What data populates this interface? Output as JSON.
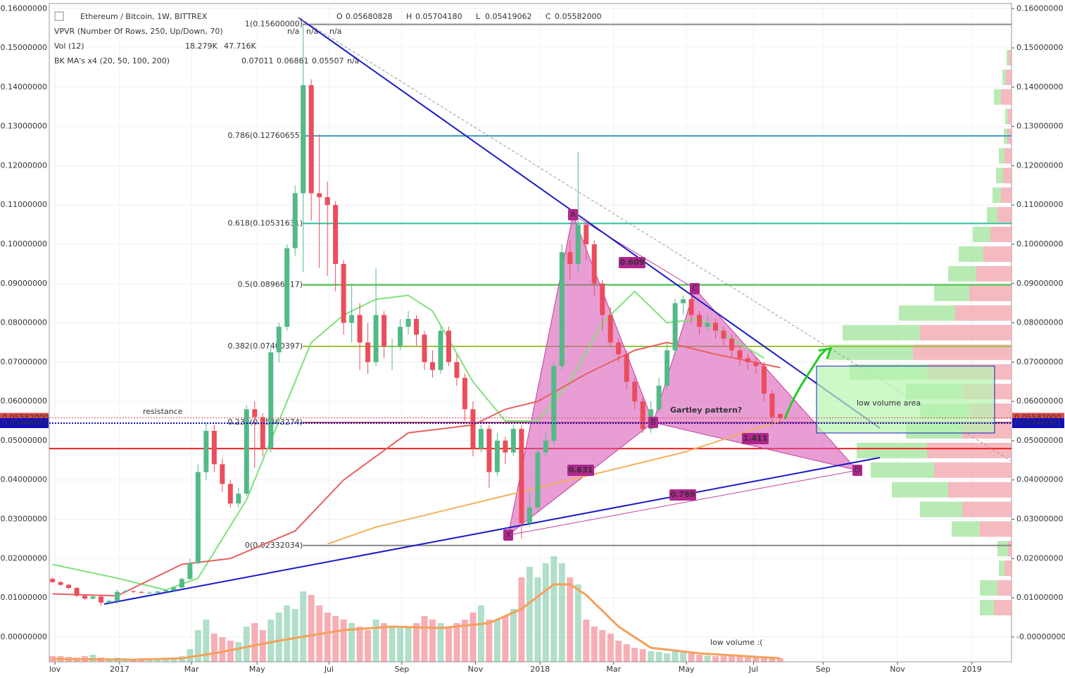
{
  "chart_data": {
    "type": "candlestick",
    "title": "Ethereum / Bitcoin, 1W, BITTREX",
    "ohlc_header": {
      "labels": [
        "O",
        "H",
        "L",
        "C"
      ],
      "values": [
        "0.05680828",
        "0.05704180",
        "0.05419062",
        "0.05582000"
      ],
      "color": "#e04a4a"
    },
    "indicators": [
      {
        "name": "VPVR (Number Of Rows, 250, Up/Down, 70)",
        "values": [
          "n/a",
          "n/a",
          "n/a"
        ],
        "colors": [
          "#2ecc40",
          "#e04a4a",
          "#333333"
        ]
      },
      {
        "name": "Vol (12)",
        "values": [
          "18.279K",
          "47.716K"
        ],
        "colors": [
          "#e04a4a",
          "#f0a040"
        ]
      },
      {
        "name": "BK MA's x4 (20, 50, 100, 200)",
        "values": [
          "0.07011",
          "0.06861",
          "0.05507",
          "n/a"
        ],
        "colors": [
          "#2ecc40",
          "#cc2020",
          "#f0a040",
          "#8e24aa"
        ]
      }
    ],
    "up_color": "#53b987",
    "down_color": "#eb4d5c",
    "candles": [
      [
        0.0148,
        0.0152,
        0.0138,
        0.014
      ],
      [
        0.014,
        0.0143,
        0.013,
        0.0133
      ],
      [
        0.0133,
        0.0136,
        0.0122,
        0.0125
      ],
      [
        0.0125,
        0.0128,
        0.0102,
        0.0105
      ],
      [
        0.0105,
        0.0108,
        0.0095,
        0.0098
      ],
      [
        0.0098,
        0.0106,
        0.0096,
        0.0103
      ],
      [
        0.0103,
        0.0105,
        0.008,
        0.0088
      ],
      [
        0.0088,
        0.0095,
        0.0082,
        0.0092
      ],
      [
        0.0092,
        0.012,
        0.0085,
        0.0115
      ],
      [
        0.0115,
        0.012,
        0.0112,
        0.0117
      ],
      [
        0.0117,
        0.0119,
        0.0112,
        0.0115
      ],
      [
        0.0115,
        0.0117,
        0.0111,
        0.0113
      ],
      [
        0.0113,
        0.0116,
        0.011,
        0.0113
      ],
      [
        0.0113,
        0.0118,
        0.0111,
        0.0116
      ],
      [
        0.0116,
        0.0121,
        0.0114,
        0.0119
      ],
      [
        0.0119,
        0.013,
        0.0117,
        0.0126
      ],
      [
        0.0126,
        0.0152,
        0.0124,
        0.0148
      ],
      [
        0.0148,
        0.02,
        0.0145,
        0.0188
      ],
      [
        0.0188,
        0.044,
        0.0185,
        0.042
      ],
      [
        0.042,
        0.0545,
        0.04,
        0.0525
      ],
      [
        0.0525,
        0.054,
        0.042,
        0.044
      ],
      [
        0.044,
        0.0455,
        0.037,
        0.039
      ],
      [
        0.039,
        0.04,
        0.033,
        0.034
      ],
      [
        0.034,
        0.038,
        0.033,
        0.0365
      ],
      [
        0.0365,
        0.059,
        0.036,
        0.058
      ],
      [
        0.058,
        0.06,
        0.043,
        0.056
      ],
      [
        0.056,
        0.057,
        0.046,
        0.048
      ],
      [
        0.048,
        0.074,
        0.047,
        0.0725
      ],
      [
        0.0725,
        0.08,
        0.07,
        0.079
      ],
      [
        0.079,
        0.1,
        0.078,
        0.099
      ],
      [
        0.099,
        0.115,
        0.097,
        0.113
      ],
      [
        0.113,
        0.156,
        0.093,
        0.1405
      ],
      [
        0.1405,
        0.142,
        0.106,
        0.113
      ],
      [
        0.113,
        0.128,
        0.094,
        0.112
      ],
      [
        0.112,
        0.116,
        0.092,
        0.11
      ],
      [
        0.11,
        0.111,
        0.088,
        0.095
      ],
      [
        0.095,
        0.096,
        0.077,
        0.08
      ],
      [
        0.08,
        0.09,
        0.075,
        0.082
      ],
      [
        0.082,
        0.085,
        0.068,
        0.075
      ],
      [
        0.075,
        0.08,
        0.067,
        0.07
      ],
      [
        0.07,
        0.094,
        0.069,
        0.082
      ],
      [
        0.082,
        0.083,
        0.071,
        0.074
      ],
      [
        0.074,
        0.076,
        0.068,
        0.074
      ],
      [
        0.074,
        0.081,
        0.073,
        0.079
      ],
      [
        0.079,
        0.083,
        0.077,
        0.081
      ],
      [
        0.081,
        0.082,
        0.074,
        0.077
      ],
      [
        0.077,
        0.078,
        0.068,
        0.07
      ],
      [
        0.07,
        0.073,
        0.066,
        0.068
      ],
      [
        0.068,
        0.079,
        0.067,
        0.078
      ],
      [
        0.078,
        0.079,
        0.069,
        0.07
      ],
      [
        0.07,
        0.072,
        0.064,
        0.066
      ],
      [
        0.066,
        0.067,
        0.055,
        0.058
      ],
      [
        0.058,
        0.06,
        0.046,
        0.048
      ],
      [
        0.048,
        0.054,
        0.047,
        0.053
      ],
      [
        0.053,
        0.054,
        0.038,
        0.042
      ],
      [
        0.042,
        0.052,
        0.041,
        0.05
      ],
      [
        0.05,
        0.051,
        0.044,
        0.047
      ],
      [
        0.047,
        0.054,
        0.046,
        0.053
      ],
      [
        0.053,
        0.054,
        0.025,
        0.029
      ],
      [
        0.029,
        0.037,
        0.028,
        0.033
      ],
      [
        0.033,
        0.048,
        0.032,
        0.047
      ],
      [
        0.047,
        0.052,
        0.046,
        0.05
      ],
      [
        0.05,
        0.07,
        0.049,
        0.069
      ],
      [
        0.069,
        0.1,
        0.068,
        0.098
      ],
      [
        0.098,
        0.101,
        0.091,
        0.095
      ],
      [
        0.095,
        0.1235,
        0.093,
        0.105
      ],
      [
        0.105,
        0.106,
        0.096,
        0.1
      ],
      [
        0.1,
        0.101,
        0.087,
        0.09
      ],
      [
        0.09,
        0.091,
        0.078,
        0.082
      ],
      [
        0.082,
        0.084,
        0.074,
        0.075
      ],
      [
        0.075,
        0.076,
        0.07,
        0.072
      ],
      [
        0.072,
        0.073,
        0.063,
        0.065
      ],
      [
        0.065,
        0.066,
        0.058,
        0.06
      ],
      [
        0.06,
        0.061,
        0.052,
        0.053
      ],
      [
        0.053,
        0.06,
        0.052,
        0.058
      ],
      [
        0.058,
        0.066,
        0.057,
        0.064
      ],
      [
        0.064,
        0.075,
        0.063,
        0.073
      ],
      [
        0.073,
        0.086,
        0.072,
        0.085
      ],
      [
        0.085,
        0.087,
        0.082,
        0.086
      ],
      [
        0.086,
        0.087,
        0.08,
        0.082
      ],
      [
        0.082,
        0.083,
        0.077,
        0.079
      ],
      [
        0.079,
        0.082,
        0.078,
        0.08
      ],
      [
        0.08,
        0.081,
        0.076,
        0.078
      ],
      [
        0.078,
        0.079,
        0.074,
        0.076
      ],
      [
        0.076,
        0.077,
        0.071,
        0.073
      ],
      [
        0.073,
        0.074,
        0.069,
        0.071
      ],
      [
        0.071,
        0.072,
        0.068,
        0.07
      ],
      [
        0.07,
        0.071,
        0.067,
        0.069
      ],
      [
        0.069,
        0.07,
        0.06,
        0.062
      ],
      [
        0.062,
        0.063,
        0.054,
        0.056
      ],
      [
        0.0568,
        0.057,
        0.0542,
        0.0558
      ]
    ],
    "volume": [
      8,
      8,
      7,
      6,
      8,
      10,
      6,
      5,
      6,
      5,
      4,
      4,
      3,
      3,
      4,
      6,
      8,
      18,
      45,
      60,
      40,
      35,
      30,
      28,
      50,
      55,
      45,
      60,
      70,
      80,
      75,
      100,
      95,
      80,
      70,
      65,
      60,
      55,
      50,
      45,
      60,
      55,
      50,
      48,
      50,
      55,
      65,
      60,
      55,
      50,
      55,
      60,
      70,
      80,
      60,
      60,
      65,
      75,
      120,
      135,
      120,
      140,
      150,
      140,
      120,
      110,
      60,
      50,
      45,
      40,
      30,
      25,
      20,
      18,
      15,
      14,
      12,
      15,
      14,
      12,
      10,
      9,
      8,
      8,
      8,
      7,
      7,
      6,
      6,
      5,
      5
    ],
    "volume_ma": {
      "color": "#f5a05a",
      "points": [
        [
          0,
          4
        ],
        [
          10,
          3
        ],
        [
          16,
          5
        ],
        [
          20,
          12
        ],
        [
          28,
          30
        ],
        [
          36,
          45
        ],
        [
          42,
          50
        ],
        [
          48,
          48
        ],
        [
          54,
          55
        ],
        [
          58,
          75
        ],
        [
          62,
          110
        ],
        [
          64,
          110
        ],
        [
          66,
          95
        ],
        [
          70,
          50
        ],
        [
          74,
          20
        ],
        [
          80,
          12
        ],
        [
          90,
          5
        ]
      ]
    },
    "ma_lines": [
      {
        "color": "#7ee27a",
        "points": [
          [
            0,
            0.0185
          ],
          [
            8,
            0.015
          ],
          [
            14,
            0.012
          ],
          [
            18,
            0.015
          ],
          [
            24,
            0.035
          ],
          [
            28,
            0.055
          ],
          [
            32,
            0.075
          ],
          [
            36,
            0.082
          ],
          [
            40,
            0.086
          ],
          [
            44,
            0.087
          ],
          [
            47,
            0.083
          ],
          [
            52,
            0.065
          ],
          [
            56,
            0.055
          ],
          [
            60,
            0.055
          ],
          [
            64,
            0.065
          ],
          [
            68,
            0.08
          ],
          [
            72,
            0.088
          ],
          [
            76,
            0.08
          ],
          [
            80,
            0.081
          ],
          [
            84,
            0.076
          ],
          [
            88,
            0.071
          ]
        ]
      },
      {
        "color": "#e86060",
        "points": [
          [
            0,
            0.011
          ],
          [
            8,
            0.0105
          ],
          [
            16,
            0.0185
          ],
          [
            22,
            0.02
          ],
          [
            30,
            0.027
          ],
          [
            36,
            0.04
          ],
          [
            44,
            0.052
          ],
          [
            52,
            0.054
          ],
          [
            56,
            0.058
          ],
          [
            60,
            0.06
          ],
          [
            66,
            0.067
          ],
          [
            72,
            0.073
          ],
          [
            76,
            0.075
          ],
          [
            82,
            0.072
          ],
          [
            90,
            0.0686
          ]
        ]
      },
      {
        "color": "#f5b05a",
        "points": [
          [
            34,
            0.0237
          ],
          [
            40,
            0.028
          ],
          [
            48,
            0.032
          ],
          [
            56,
            0.036
          ],
          [
            60,
            0.038
          ],
          [
            66,
            0.041
          ],
          [
            72,
            0.044
          ],
          [
            78,
            0.047
          ],
          [
            84,
            0.051
          ],
          [
            90,
            0.0551
          ]
        ]
      }
    ],
    "volume_profile": {
      "up_color": "#a6e6a0",
      "down_color": "#f3a7b0",
      "prices": [
        0.0075,
        0.0125,
        0.0175,
        0.0225,
        0.0275,
        0.0325,
        0.0375,
        0.0425,
        0.0475,
        0.0525,
        0.0575,
        0.0625,
        0.0675,
        0.0725,
        0.0775,
        0.0825,
        0.0875,
        0.0925,
        0.0975,
        0.1025,
        0.1075,
        0.1125,
        0.1175,
        0.1225,
        0.1275,
        0.1325,
        0.1375,
        0.1425,
        0.1475
      ],
      "up": [
        20,
        25,
        8,
        15,
        40,
        60,
        80,
        90,
        100,
        80,
        70,
        80,
        110,
        120,
        110,
        80,
        50,
        40,
        35,
        25,
        15,
        12,
        10,
        8,
        5,
        4,
        10,
        5,
        3
      ],
      "down": [
        25,
        20,
        10,
        5,
        45,
        70,
        90,
        110,
        120,
        70,
        60,
        70,
        120,
        140,
        130,
        80,
        60,
        50,
        40,
        30,
        20,
        15,
        12,
        10,
        6,
        5,
        15,
        8,
        4
      ]
    },
    "xlim": [
      -0.4,
      118.6
    ],
    "xticks": [
      {
        "value": 0.3,
        "label": "lov"
      },
      {
        "value": 8.3,
        "label": "2017"
      },
      {
        "value": 17.2,
        "label": "Mar"
      },
      {
        "value": 25.3,
        "label": "May"
      },
      {
        "value": 34.2,
        "label": "Jul"
      },
      {
        "value": 43.2,
        "label": "Sep"
      },
      {
        "value": 52.3,
        "label": "Nov"
      },
      {
        "value": 60.3,
        "label": "2018"
      },
      {
        "value": 69.4,
        "label": "Mar"
      },
      {
        "value": 78.4,
        "label": "May"
      },
      {
        "value": 86.7,
        "label": "Jul"
      },
      {
        "value": 95.3,
        "label": "Sep"
      },
      {
        "value": 104.5,
        "label": "Nov"
      },
      {
        "value": 113.7,
        "label": "2019"
      }
    ],
    "ylim": [
      -0.0063,
      0.1613
    ],
    "yticks": [
      {
        "value": 0,
        "label": "-0.00000000"
      },
      {
        "value": 0.01,
        "label": "0.01000000"
      },
      {
        "value": 0.02,
        "label": "0.02000000"
      },
      {
        "value": 0.03,
        "label": "0.03000000"
      },
      {
        "value": 0.04,
        "label": "0.04000000"
      },
      {
        "value": 0.05,
        "label": "0.05000000"
      },
      {
        "value": 0.06,
        "label": "0.06000000"
      },
      {
        "value": 0.07,
        "label": "0.07000000"
      },
      {
        "value": 0.08,
        "label": "0.08000000"
      },
      {
        "value": 0.09,
        "label": "0.09000000"
      },
      {
        "value": 0.1,
        "label": "0.10000000"
      },
      {
        "value": 0.11,
        "label": "0.11000000"
      },
      {
        "value": 0.12,
        "label": "0.12000000"
      },
      {
        "value": 0.13,
        "label": "0.13000000"
      },
      {
        "value": 0.14,
        "label": "0.14000000"
      },
      {
        "value": 0.15,
        "label": "0.15000000"
      },
      {
        "value": 0.16,
        "label": "0.16000000"
      }
    ],
    "grid": true,
    "price_badges": [
      {
        "value": 0.05582,
        "label": "0.05582000",
        "color": "#e04a4a"
      },
      {
        "value": 0.05446061,
        "label": "0.05446061",
        "color": "#1010c0"
      }
    ],
    "fib_levels": [
      {
        "value": 0.156,
        "label": "1(0.15600000)",
        "color": "#888888"
      },
      {
        "value": 0.12760655,
        "label": "0.786(0.12760655)",
        "color": "#3b9ec2"
      },
      {
        "value": 0.10531631,
        "label": "0.618(0.10531631)",
        "color": "#2bbf9b"
      },
      {
        "value": 0.08966017,
        "label": "0.5(0.08966017)",
        "color": "#3cbf3c"
      },
      {
        "value": 0.07400397,
        "label": "0.382(0.07400397)",
        "color": "#9ec040"
      },
      {
        "value": 0.05463274,
        "label": "0.236(0.05463274)",
        "color": "#cc4444"
      },
      {
        "value": 0.02332034,
        "label": "0(0.02332034)",
        "color": "#888888"
      }
    ],
    "resistance": {
      "value": 0.048,
      "label": "resistance",
      "color": "#ee2222"
    },
    "pattern_points": [
      "X",
      "A",
      "B",
      "C",
      "D"
    ],
    "pattern_ratios": [
      0.609,
      0.631,
      1.411,
      0.789
    ],
    "annotations": {
      "pattern": "Gartley pattern?",
      "area": "low volume area",
      "volume": "low volume :("
    }
  }
}
